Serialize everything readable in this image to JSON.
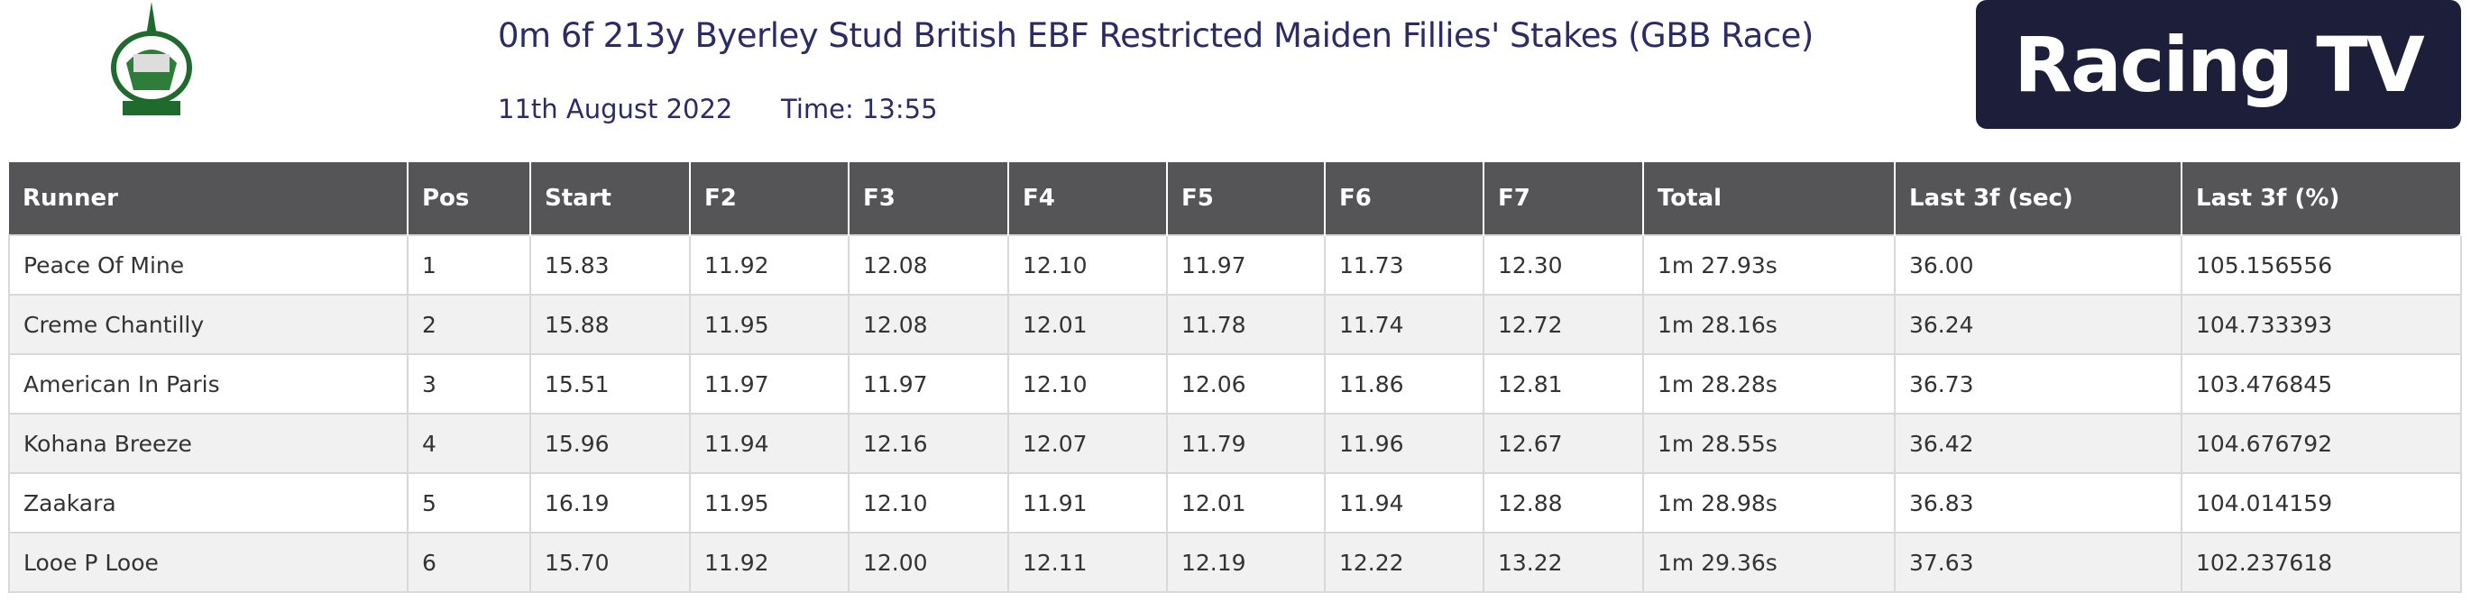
{
  "header": {
    "title": "0m 6f 213y Byerley Stud British EBF Restricted Maiden Fillies' Stakes (GBB Race)",
    "date": "11th August 2022",
    "time": "Time: 13:55",
    "brand": "Racing TV"
  },
  "table": {
    "columns": [
      "Runner",
      "Pos",
      "Start",
      "F2",
      "F3",
      "F4",
      "F5",
      "F6",
      "F7",
      "Total",
      "Last 3f (sec)",
      "Last 3f (%)"
    ],
    "rows": [
      [
        "Peace Of Mine",
        "1",
        "15.83",
        "11.92",
        "12.08",
        "12.10",
        "11.97",
        "11.73",
        "12.30",
        "1m 27.93s",
        "36.00",
        "105.156556"
      ],
      [
        "Creme Chantilly",
        "2",
        "15.88",
        "11.95",
        "12.08",
        "12.01",
        "11.78",
        "11.74",
        "12.72",
        "1m 28.16s",
        "36.24",
        "104.733393"
      ],
      [
        "American In Paris",
        "3",
        "15.51",
        "11.97",
        "11.97",
        "12.10",
        "12.06",
        "11.86",
        "12.81",
        "1m 28.28s",
        "36.73",
        "103.476845"
      ],
      [
        "Kohana Breeze",
        "4",
        "15.96",
        "11.94",
        "12.16",
        "12.07",
        "11.79",
        "11.96",
        "12.67",
        "1m 28.55s",
        "36.42",
        "104.676792"
      ],
      [
        "Zaakara",
        "5",
        "16.19",
        "11.95",
        "12.10",
        "11.91",
        "12.01",
        "11.94",
        "12.88",
        "1m 28.98s",
        "36.83",
        "104.014159"
      ],
      [
        "Looe P Looe",
        "6",
        "15.70",
        "11.92",
        "12.00",
        "12.11",
        "12.19",
        "12.22",
        "13.22",
        "1m 29.36s",
        "37.63",
        "102.237618"
      ]
    ]
  }
}
